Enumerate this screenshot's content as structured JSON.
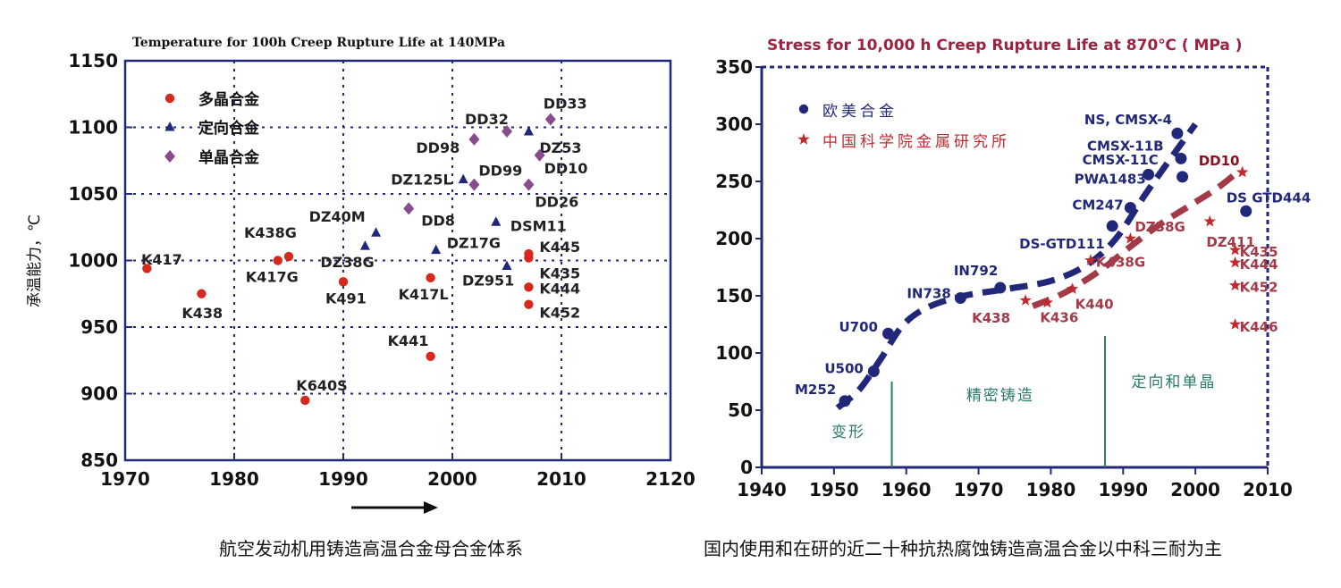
{
  "captions": {
    "left": "航空发动机用铸造高温合金母合金体系",
    "right": "国内使用和在研的近二十种抗热腐蚀铸造高温合金以中科三耐为主"
  },
  "chart_data": [
    {
      "type": "scatter",
      "title": "Temperature for 100h Creep Rupture Life at 140MPa",
      "xlabel": "",
      "ylabel": "承温能力，℃",
      "xlim": [
        1970,
        2120
      ],
      "ylim": [
        850,
        1150
      ],
      "xticks": [
        "1970",
        "1980",
        "1990",
        "2000",
        "2010",
        "2120"
      ],
      "yticks": [
        "850",
        "900",
        "950",
        "1000",
        "1050",
        "1100",
        "1150"
      ],
      "grid": true,
      "legend_position": "top-left",
      "colors": {
        "多晶合金": "#d7281e",
        "定向合金": "#21287a",
        "单晶合金": "#8a4a8e"
      },
      "series": [
        {
          "name": "多晶合金",
          "marker": "circle",
          "points": [
            {
              "label": "K417",
              "x": 1972,
              "y": 994
            },
            {
              "label": "K438",
              "x": 1977,
              "y": 975
            },
            {
              "label": "K438G",
              "x": 1985,
              "y": 1003
            },
            {
              "label": "K417G",
              "x": 1984,
              "y": 1000
            },
            {
              "label": "K491",
              "x": 1990,
              "y": 984
            },
            {
              "label": "K640S",
              "x": 1986.5,
              "y": 895
            },
            {
              "label": "K441",
              "x": 1998,
              "y": 928
            },
            {
              "label": "K417L",
              "x": 1998,
              "y": 987
            },
            {
              "label": "K445",
              "x": 2007,
              "y": 1005
            },
            {
              "label": "K435",
              "x": 2007,
              "y": 1002
            },
            {
              "label": "K444",
              "x": 2007,
              "y": 980
            },
            {
              "label": "K452",
              "x": 2007,
              "y": 967
            }
          ]
        },
        {
          "name": "定向合金",
          "marker": "triangle",
          "points": [
            {
              "label": "DZ40M",
              "x": 1993,
              "y": 1021
            },
            {
              "label": "DZ38G",
              "x": 1992,
              "y": 1011
            },
            {
              "label": "DZ125L",
              "x": 2001,
              "y": 1061
            },
            {
              "label": "DZ17G",
              "x": 1998.5,
              "y": 1008
            },
            {
              "label": "DSM11",
              "x": 2004,
              "y": 1029
            },
            {
              "label": "DZ951",
              "x": 2005,
              "y": 996
            },
            {
              "label": "DZ53",
              "x": 2007,
              "y": 1097
            }
          ]
        },
        {
          "name": "单晶合金",
          "marker": "diamond",
          "points": [
            {
              "label": "DD98",
              "x": 2002,
              "y": 1091
            },
            {
              "label": "DD32",
              "x": 2005,
              "y": 1097
            },
            {
              "label": "DD33",
              "x": 2009,
              "y": 1106
            },
            {
              "label": "DD10",
              "x": 2008,
              "y": 1079
            },
            {
              "label": "DD99",
              "x": 2002,
              "y": 1057
            },
            {
              "label": "DD26",
              "x": 2007,
              "y": 1057
            },
            {
              "label": "DD8",
              "x": 1996,
              "y": 1039
            }
          ]
        }
      ]
    },
    {
      "type": "scatter",
      "title": "Stress for 10,000 h Creep Rupture Life at 870℃ ( MPa )",
      "xlabel": "",
      "ylabel": "",
      "xlim": [
        1940,
        2010
      ],
      "ylim": [
        0,
        350
      ],
      "xticks": [
        "1940",
        "1950",
        "1960",
        "1970",
        "1980",
        "1990",
        "2000",
        "2010"
      ],
      "yticks": [
        "0",
        "50",
        "100",
        "150",
        "200",
        "250",
        "300",
        "350"
      ],
      "grid": false,
      "legend_position": "top-left",
      "colors": {
        "欧美合金": "#21287a",
        "中国科学院金属研究所": "#c0292d",
        "trend_west": "#21287a",
        "trend_china": "#a23a48",
        "region": "#2a7a6a"
      },
      "regions": [
        {
          "label": "变形",
          "x": 1952
        },
        {
          "label": "精密铸造",
          "x": 1973
        },
        {
          "label": "定向和单晶",
          "x": 1997
        }
      ],
      "dividers_x": [
        1958,
        1987.5
      ],
      "series": [
        {
          "name": "欧美合金",
          "marker": "circle",
          "points": [
            {
              "label": "M252",
              "x": 1951.5,
              "y": 58
            },
            {
              "label": "U500",
              "x": 1955.5,
              "y": 84
            },
            {
              "label": "U700",
              "x": 1957.5,
              "y": 117
            },
            {
              "label": "IN738",
              "x": 1967.5,
              "y": 148
            },
            {
              "label": "IN792",
              "x": 1973,
              "y": 157
            },
            {
              "label": "DS-GTD111",
              "x": 1988.5,
              "y": 211
            },
            {
              "label": "CM247",
              "x": 1991,
              "y": 227
            },
            {
              "label": "PWA1483",
              "x": 1993.5,
              "y": 256
            },
            {
              "label": "NS, CMSX-4",
              "x": 1997.5,
              "y": 292
            },
            {
              "label": "CMSX-11B",
              "x": 1998,
              "y": 270
            },
            {
              "label": "CMSX-11C",
              "x": 1998.2,
              "y": 254
            },
            {
              "label": "DS GTD444",
              "x": 2007,
              "y": 224
            }
          ]
        },
        {
          "name": "中国科学院金属研究所",
          "marker": "star",
          "points": [
            {
              "label": "K438",
              "x": 1976.5,
              "y": 146
            },
            {
              "label": "K436",
              "x": 1979.5,
              "y": 144
            },
            {
              "label": "K440",
              "x": 1983,
              "y": 156
            },
            {
              "label": "K438G",
              "x": 1985.5,
              "y": 181
            },
            {
              "label": "DZ38G",
              "x": 1991,
              "y": 200
            },
            {
              "label": "DZ411",
              "x": 2002,
              "y": 215
            },
            {
              "label": "DD10",
              "x": 2006.5,
              "y": 258
            },
            {
              "label": "K435",
              "x": 2005.5,
              "y": 190
            },
            {
              "label": "K444",
              "x": 2005.5,
              "y": 179
            },
            {
              "label": "K452",
              "x": 2005.5,
              "y": 159
            },
            {
              "label": "K446",
              "x": 2005.5,
              "y": 125
            }
          ]
        }
      ],
      "trends": [
        {
          "color_key": "trend_west",
          "points": [
            [
              1950.5,
              52
            ],
            [
              1953.5,
              68
            ],
            [
              1956.5,
              95
            ],
            [
              1959.5,
              124
            ],
            [
              1963,
              140
            ],
            [
              1968,
              150
            ],
            [
              1974,
              156
            ],
            [
              1980,
              163
            ],
            [
              1985,
              177
            ],
            [
              1989,
              200
            ],
            [
              1993,
              238
            ],
            [
              1996,
              265
            ],
            [
              2000,
              300
            ]
          ]
        },
        {
          "color_key": "trend_china",
          "points": [
            [
              1977.5,
              141
            ],
            [
              1982,
              153
            ],
            [
              1987,
              173
            ],
            [
              1991,
              193
            ],
            [
              1995,
              212
            ],
            [
              1999,
              228
            ],
            [
              2003,
              244
            ],
            [
              2006,
              259
            ]
          ]
        }
      ]
    }
  ]
}
